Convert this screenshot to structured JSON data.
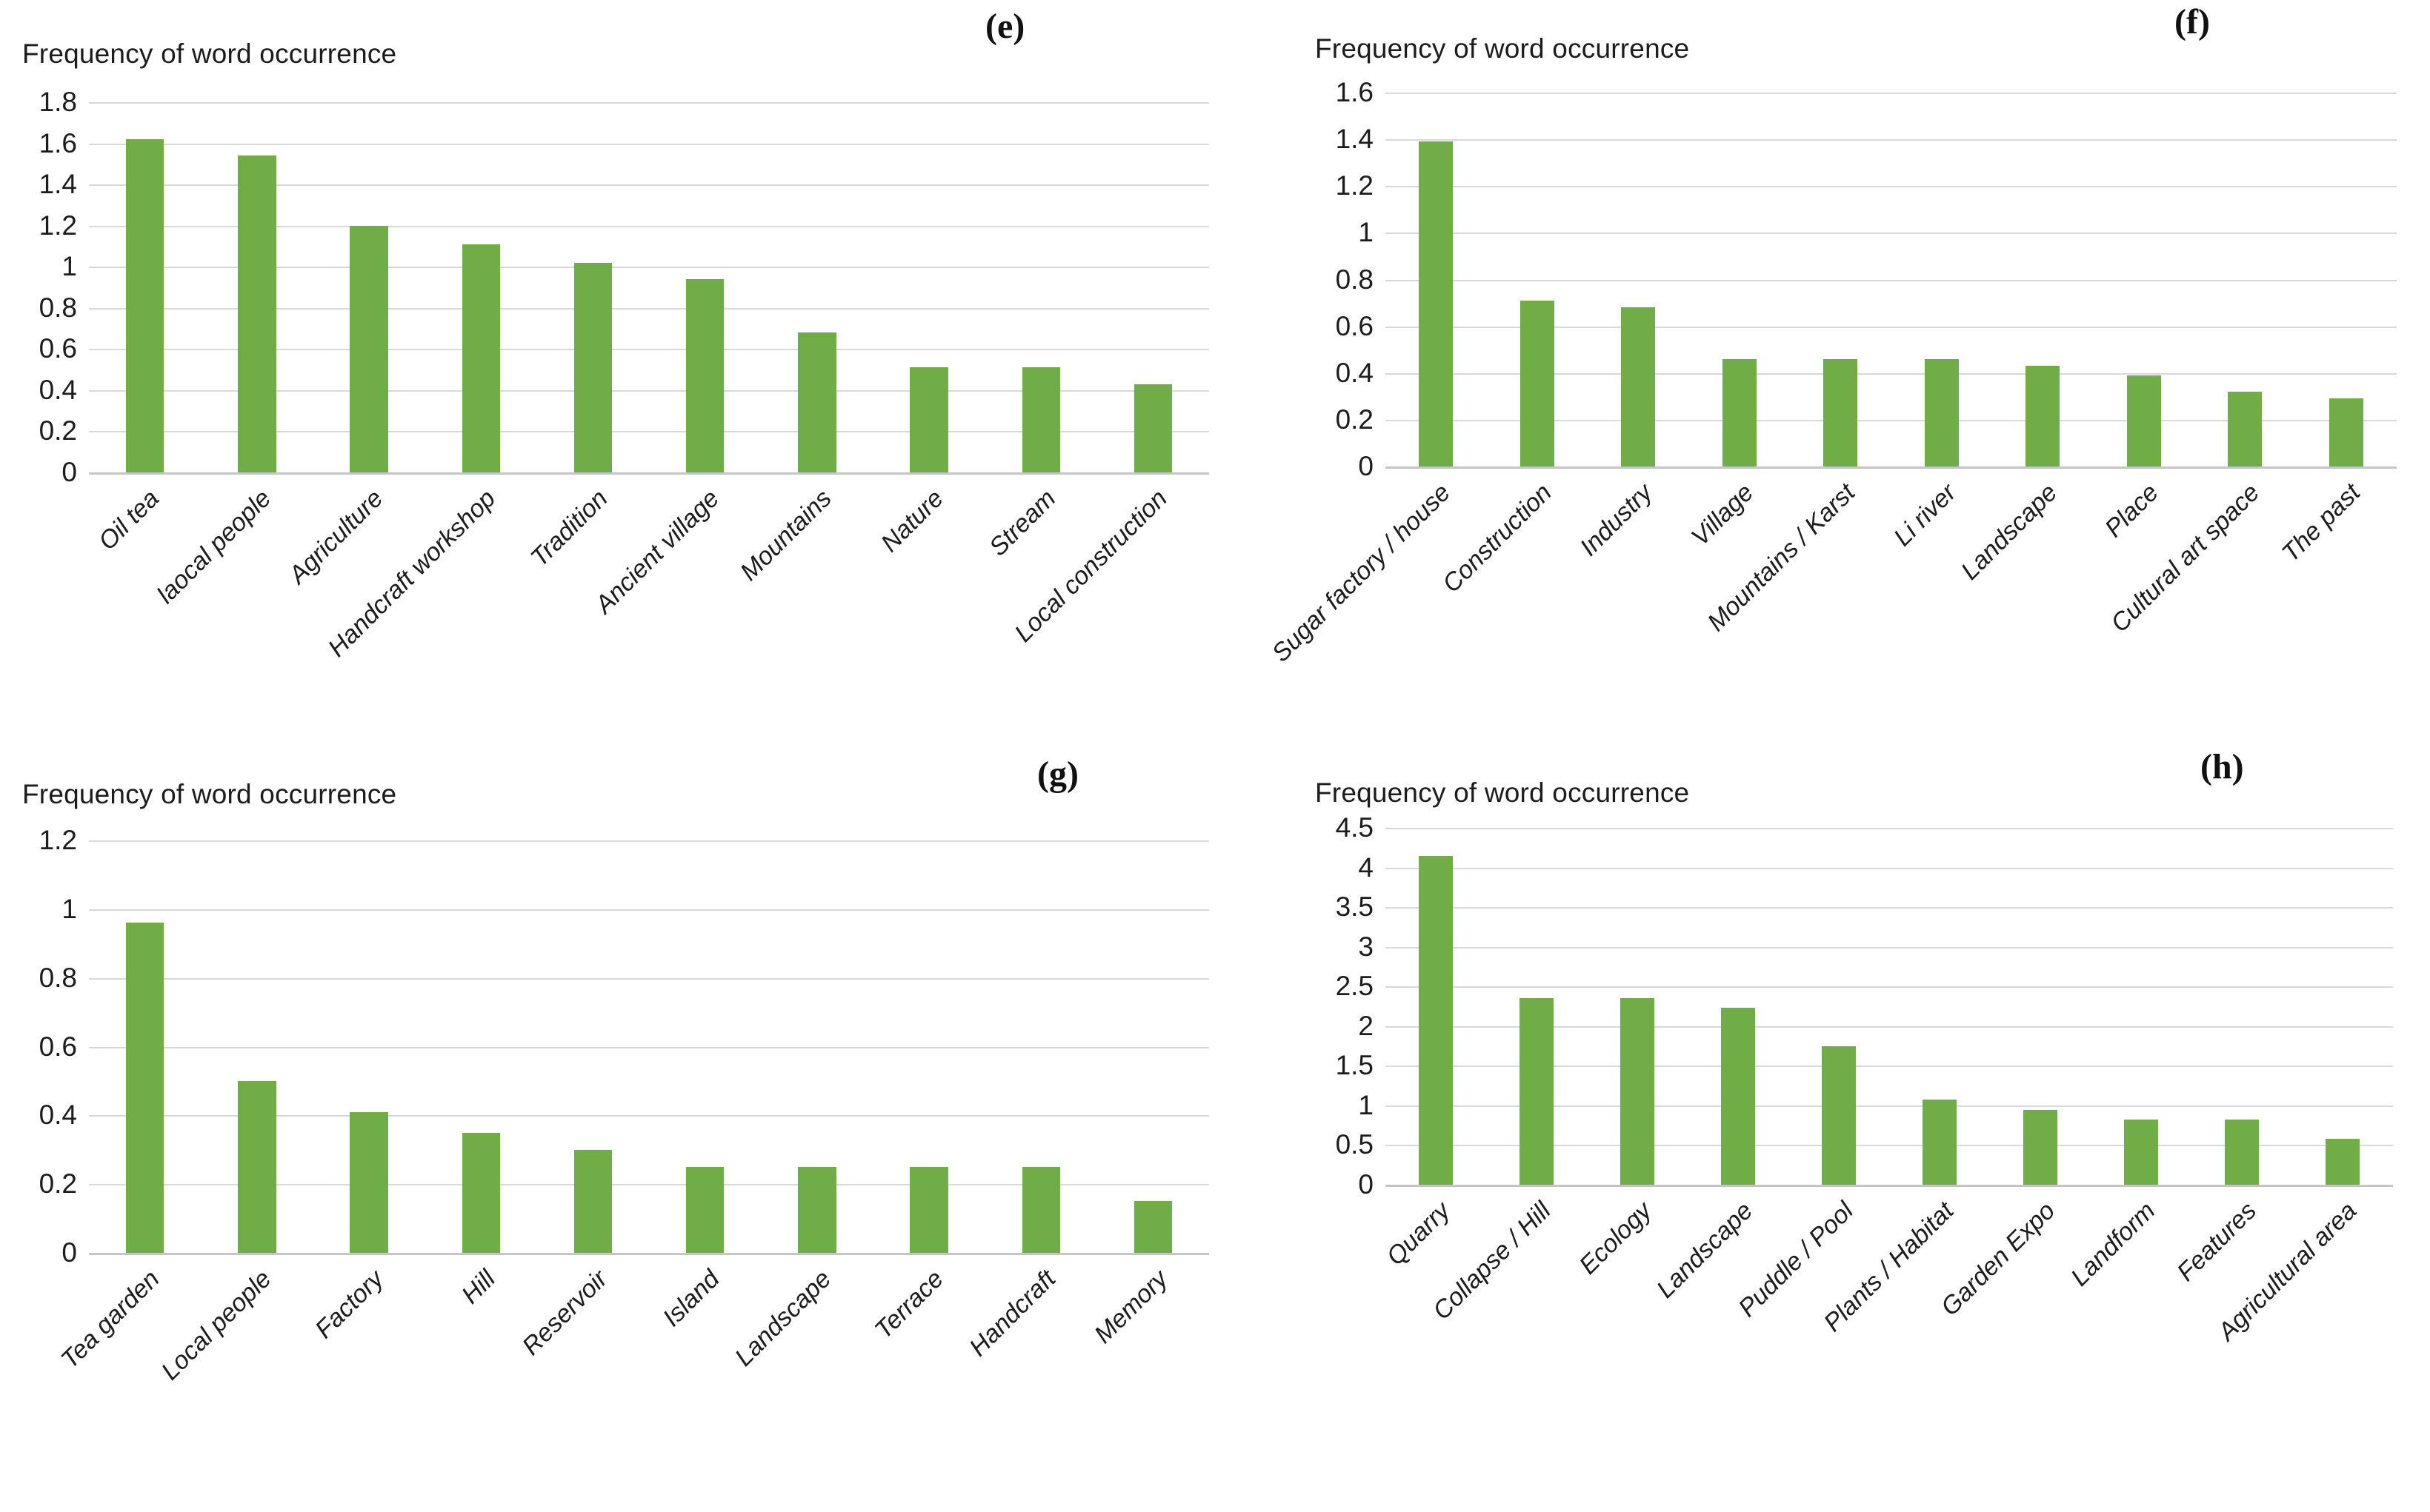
{
  "figure": {
    "bar_color": "#70AD47",
    "gridline_color": "#D9D9D9",
    "baseline_color": "#C6C6C6",
    "axis_text_color": "#1C1C1C"
  },
  "chart_data": [
    {
      "type": "bar",
      "panel_label": "(e)",
      "title": "Frequency of word occurrence",
      "categories": [
        "Oil tea",
        "laocal people",
        "Agriculture",
        "Handcraft workshop",
        "Tradition",
        "Ancient village",
        "Mountains",
        "Nature",
        "Stream",
        "Local construction"
      ],
      "values": [
        1.62,
        1.54,
        1.2,
        1.11,
        1.02,
        0.94,
        0.68,
        0.51,
        0.51,
        0.43
      ],
      "xlabel": "",
      "ylabel": "",
      "ylim": [
        0,
        1.8
      ],
      "ytick_step": 0.2,
      "grid": "horizontal",
      "legend": "none"
    },
    {
      "type": "bar",
      "panel_label": "(f)",
      "title": "Frequency of word occurrence",
      "categories": [
        "Sugar factory / house",
        "Construction",
        "Industry",
        "Village",
        "Mountains / Karst",
        "Li river",
        "Landscape",
        "Place",
        "Cultural art space",
        "The past"
      ],
      "values": [
        1.39,
        0.71,
        0.68,
        0.46,
        0.46,
        0.46,
        0.43,
        0.39,
        0.32,
        0.29
      ],
      "xlabel": "",
      "ylabel": "",
      "ylim": [
        0,
        1.6
      ],
      "ytick_step": 0.2,
      "grid": "horizontal",
      "legend": "none"
    },
    {
      "type": "bar",
      "panel_label": "(g)",
      "title": "Frequency of word occurrence",
      "categories": [
        "Tea garden",
        "Local people",
        "Factory",
        "Hill",
        "Reservoir",
        "Island",
        "Landscape",
        "Terrace",
        "Handcraft",
        "Memory"
      ],
      "values": [
        0.96,
        0.5,
        0.41,
        0.35,
        0.3,
        0.25,
        0.25,
        0.25,
        0.25,
        0.15
      ],
      "xlabel": "",
      "ylabel": "",
      "ylim": [
        0,
        1.2
      ],
      "ytick_step": 0.2,
      "grid": "horizontal",
      "legend": "none"
    },
    {
      "type": "bar",
      "panel_label": "(h)",
      "title": "Frequency of word occurrence",
      "categories": [
        "Quarry",
        "Collapse / Hill",
        "Ecology",
        "Landscape",
        "Puddle / Pool",
        "Plants / Habitat",
        "Garden Expo",
        "Landform",
        "Features",
        "Agricultural area"
      ],
      "values": [
        4.15,
        2.35,
        2.35,
        2.23,
        1.75,
        1.07,
        0.94,
        0.82,
        0.82,
        0.58
      ],
      "xlabel": "",
      "ylabel": "",
      "ylim": [
        0,
        4.5
      ],
      "ytick_step": 0.5,
      "grid": "horizontal",
      "legend": "none"
    }
  ]
}
